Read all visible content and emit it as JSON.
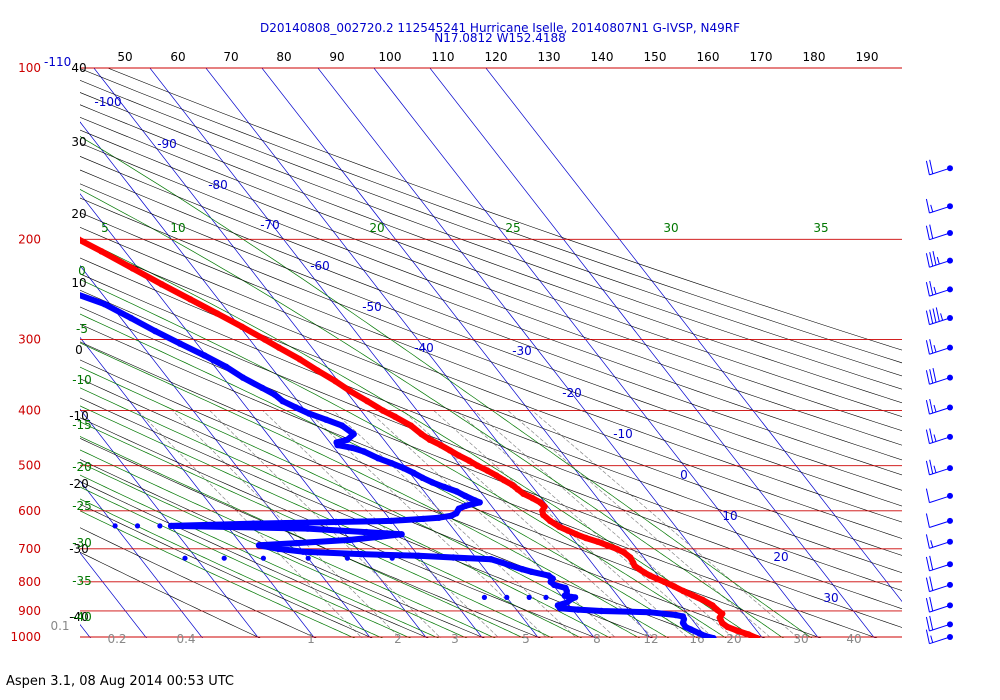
{
  "chart_data": {
    "type": "line",
    "title_line1": "D20140808_002720.2 112545241 Hurricane Iselle, 20140807N1 G-IVSP, N49RF",
    "title_line2": "N17.0812 W152.4188",
    "footer": "Aspen 3.1, 08 Aug 2014  00:53 UTC",
    "pressure_ticks": [
      "100",
      "200",
      "300",
      "400",
      "500",
      "600",
      "700",
      "800",
      "900",
      "1000"
    ],
    "pressure_values": [
      100,
      200,
      300,
      400,
      500,
      600,
      700,
      800,
      900,
      1000
    ],
    "top_fahrenheit_ticks": [
      "50",
      "60",
      "70",
      "80",
      "90",
      "100",
      "110",
      "120",
      "130",
      "140",
      "150",
      "160",
      "170",
      "180",
      "190"
    ],
    "top_extra_label": "-110",
    "left_secondary_labels": [
      "40",
      "30",
      "20",
      "10",
      "0",
      "-10",
      "-20",
      "-30",
      "-40"
    ],
    "green_adiabat_labels": [
      "5",
      "10",
      "20",
      "25",
      "30",
      "35"
    ],
    "green_left_labels": [
      "0",
      "-5",
      "-10",
      "-15",
      "-20",
      "-25",
      "-30",
      "-35",
      "-40"
    ],
    "mixing_ratio_labels": [
      "0.1",
      "0.2",
      "0.4",
      "1",
      "2",
      "3",
      "5",
      "8",
      "12",
      "16",
      "20",
      "30",
      "40"
    ],
    "isotherm_labels": [
      "-100",
      "-90",
      "-80",
      "-70",
      "-60",
      "-50",
      "-40",
      "-30",
      "-20",
      "-10",
      "0",
      "10",
      "20",
      "30"
    ],
    "series": [
      {
        "name": "temperature",
        "color": "#ff0000",
        "points": [
          [
            1005,
            29
          ],
          [
            990,
            28
          ],
          [
            975,
            26.5
          ],
          [
            960,
            25.3
          ],
          [
            945,
            24.9
          ],
          [
            925,
            25.2
          ],
          [
            910,
            26.2
          ],
          [
            895,
            25.8
          ],
          [
            880,
            25.6
          ],
          [
            860,
            24.6
          ],
          [
            845,
            23.5
          ],
          [
            830,
            22.4
          ],
          [
            815,
            21.4
          ],
          [
            800,
            20.3
          ],
          [
            790,
            19.4
          ],
          [
            780,
            18.6
          ],
          [
            770,
            18
          ],
          [
            760,
            17.6
          ],
          [
            750,
            17.2
          ],
          [
            740,
            17.4
          ],
          [
            725,
            17.6
          ],
          [
            710,
            17.2
          ],
          [
            700,
            16.4
          ],
          [
            690,
            15.2
          ],
          [
            680,
            14
          ],
          [
            670,
            12.4
          ],
          [
            660,
            11.2
          ],
          [
            650,
            10.2
          ],
          [
            640,
            9.2
          ],
          [
            625,
            8.4
          ],
          [
            610,
            8
          ],
          [
            600,
            8.4
          ],
          [
            590,
            9.4
          ],
          [
            580,
            9.2
          ],
          [
            570,
            8.4
          ],
          [
            560,
            7.4
          ],
          [
            550,
            7
          ],
          [
            540,
            6.6
          ],
          [
            530,
            5.8
          ],
          [
            520,
            5.1
          ],
          [
            510,
            4.2
          ],
          [
            500,
            3.1
          ],
          [
            490,
            2.3
          ],
          [
            480,
            1.2
          ],
          [
            470,
            0.3
          ],
          [
            460,
            -0.6
          ],
          [
            450,
            -1.8
          ],
          [
            440,
            -2.5
          ],
          [
            425,
            -3.2
          ],
          [
            410,
            -4.8
          ],
          [
            400,
            -6.1
          ],
          [
            385,
            -7.6
          ],
          [
            370,
            -9.2
          ],
          [
            355,
            -10.5
          ],
          [
            340,
            -12.2
          ],
          [
            325,
            -13.8
          ],
          [
            310,
            -15.9
          ],
          [
            300,
            -17.3
          ],
          [
            285,
            -19.6
          ],
          [
            270,
            -22.2
          ],
          [
            255,
            -25
          ],
          [
            240,
            -28
          ],
          [
            225,
            -31
          ],
          [
            210,
            -34.2
          ],
          [
            200,
            -36.6
          ],
          [
            190,
            -39
          ],
          [
            180,
            -41.5
          ],
          [
            175,
            -42.8
          ],
          [
            170,
            -44
          ]
        ],
        "isolated_point": [
          150,
          -46.7
        ]
      },
      {
        "name": "dewpoint",
        "color": "#0000ff",
        "points": [
          [
            1005,
            21.2
          ],
          [
            995,
            20
          ],
          [
            985,
            19.4
          ],
          [
            970,
            18.4
          ],
          [
            960,
            17.8
          ],
          [
            945,
            17.9
          ],
          [
            930,
            18.6
          ],
          [
            920,
            18.8
          ],
          [
            915,
            17.7
          ],
          [
            905,
            13.5
          ],
          [
            900,
            5
          ],
          [
            895,
            1
          ],
          [
            890,
            -2
          ],
          [
            880,
            -2
          ],
          [
            870,
            0
          ],
          [
            860,
            1
          ],
          [
            852,
            2.2
          ],
          [
            846,
            0.6
          ],
          [
            840,
            1.2
          ],
          [
            830,
            1.6
          ],
          [
            820,
            1.8
          ],
          [
            810,
            0.2
          ],
          [
            800,
            0
          ],
          [
            790,
            0.8
          ],
          [
            780,
            0.5
          ],
          [
            768,
            -2
          ],
          [
            760,
            -3.3
          ],
          [
            748,
            -5
          ],
          [
            740,
            -6
          ],
          [
            730,
            -7.5
          ],
          [
            725,
            -14
          ],
          [
            720,
            -20
          ],
          [
            715,
            -30
          ],
          [
            708,
            -40
          ],
          [
            700,
            -44
          ],
          [
            690,
            -47
          ],
          [
            684,
            -40
          ],
          [
            675,
            -30
          ],
          [
            666,
            -24
          ],
          [
            660,
            -20
          ],
          [
            654,
            -26
          ],
          [
            645,
            -36
          ],
          [
            638,
            -60
          ],
          [
            632,
            -45
          ],
          [
            628,
            -30
          ],
          [
            625,
            -20
          ],
          [
            620,
            -14
          ],
          [
            617,
            -11
          ],
          [
            612,
            -8.5
          ],
          [
            606,
            -7.3
          ],
          [
            600,
            -6.7
          ],
          [
            595,
            -6.2
          ],
          [
            588,
            -4.6
          ],
          [
            583,
            -2.8
          ],
          [
            580,
            -1.6
          ],
          [
            575,
            -2.2
          ],
          [
            565,
            -3.3
          ],
          [
            555,
            -4.2
          ],
          [
            545,
            -5.8
          ],
          [
            535,
            -7.3
          ],
          [
            525,
            -8.4
          ],
          [
            515,
            -9.3
          ],
          [
            505,
            -10.4
          ],
          [
            495,
            -11.9
          ],
          [
            485,
            -13.6
          ],
          [
            472,
            -15.2
          ],
          [
            465,
            -16.8
          ],
          [
            460,
            -19
          ],
          [
            455,
            -18.8
          ],
          [
            450,
            -16.5
          ],
          [
            440,
            -14.6
          ],
          [
            425,
            -15.5
          ],
          [
            415,
            -17.5
          ],
          [
            405,
            -19.7
          ],
          [
            395,
            -21.2
          ],
          [
            385,
            -22.7
          ],
          [
            375,
            -23.2
          ],
          [
            365,
            -24.5
          ],
          [
            350,
            -26.5
          ],
          [
            335,
            -28
          ],
          [
            320,
            -30.3
          ],
          [
            305,
            -33
          ],
          [
            290,
            -35.7
          ],
          [
            275,
            -38.2
          ],
          [
            260,
            -41
          ],
          [
            250,
            -44.5
          ],
          [
            245,
            -47.6
          ],
          [
            240,
            -52.3
          ],
          [
            236,
            -56.9
          ],
          [
            232,
            -60
          ],
          [
            228,
            -62.8
          ],
          [
            225,
            -64.6
          ],
          [
            220,
            -66.5
          ],
          [
            210,
            -69.2
          ],
          [
            200,
            -71.4
          ],
          [
            190,
            -73.4
          ]
        ],
        "isolated_points": [
          [
            727,
            -25
          ],
          [
            727,
            -33
          ],
          [
            727,
            -40
          ],
          [
            727,
            -48
          ],
          [
            727,
            -55
          ],
          [
            727,
            -62
          ],
          [
            638,
            -47
          ],
          [
            638,
            -53
          ],
          [
            638,
            -58
          ],
          [
            638,
            -62
          ],
          [
            638,
            -66
          ],
          [
            638,
            -70
          ],
          [
            852,
            -3
          ],
          [
            852,
            -6
          ],
          [
            852,
            -10
          ],
          [
            852,
            -14
          ]
        ]
      }
    ],
    "wind_barbs": [
      {
        "pressure": 150,
        "speed_kt": 20
      },
      {
        "pressure": 175,
        "speed_kt": 15
      },
      {
        "pressure": 195,
        "speed_kt": 20
      },
      {
        "pressure": 218,
        "speed_kt": 35
      },
      {
        "pressure": 245,
        "speed_kt": 25
      },
      {
        "pressure": 275,
        "speed_kt": 45
      },
      {
        "pressure": 310,
        "speed_kt": 25
      },
      {
        "pressure": 350,
        "speed_kt": 30
      },
      {
        "pressure": 395,
        "speed_kt": 25
      },
      {
        "pressure": 445,
        "speed_kt": 25
      },
      {
        "pressure": 505,
        "speed_kt": 25
      },
      {
        "pressure": 565,
        "speed_kt": 10
      },
      {
        "pressure": 625,
        "speed_kt": 10
      },
      {
        "pressure": 680,
        "speed_kt": 15
      },
      {
        "pressure": 745,
        "speed_kt": 20
      },
      {
        "pressure": 810,
        "speed_kt": 20
      },
      {
        "pressure": 880,
        "speed_kt": 20
      },
      {
        "pressure": 950,
        "speed_kt": 20
      },
      {
        "pressure": 1000,
        "speed_kt": 15
      }
    ],
    "colors": {
      "isobar": "#cc0000",
      "isotherm": "#0000cc",
      "dry_adiabat": "#000000",
      "moist_adiabat": "#007700",
      "mixing_ratio": "#888888",
      "temperature": "#ff0000",
      "dewpoint": "#0000ff",
      "title": "#0000cc"
    }
  }
}
